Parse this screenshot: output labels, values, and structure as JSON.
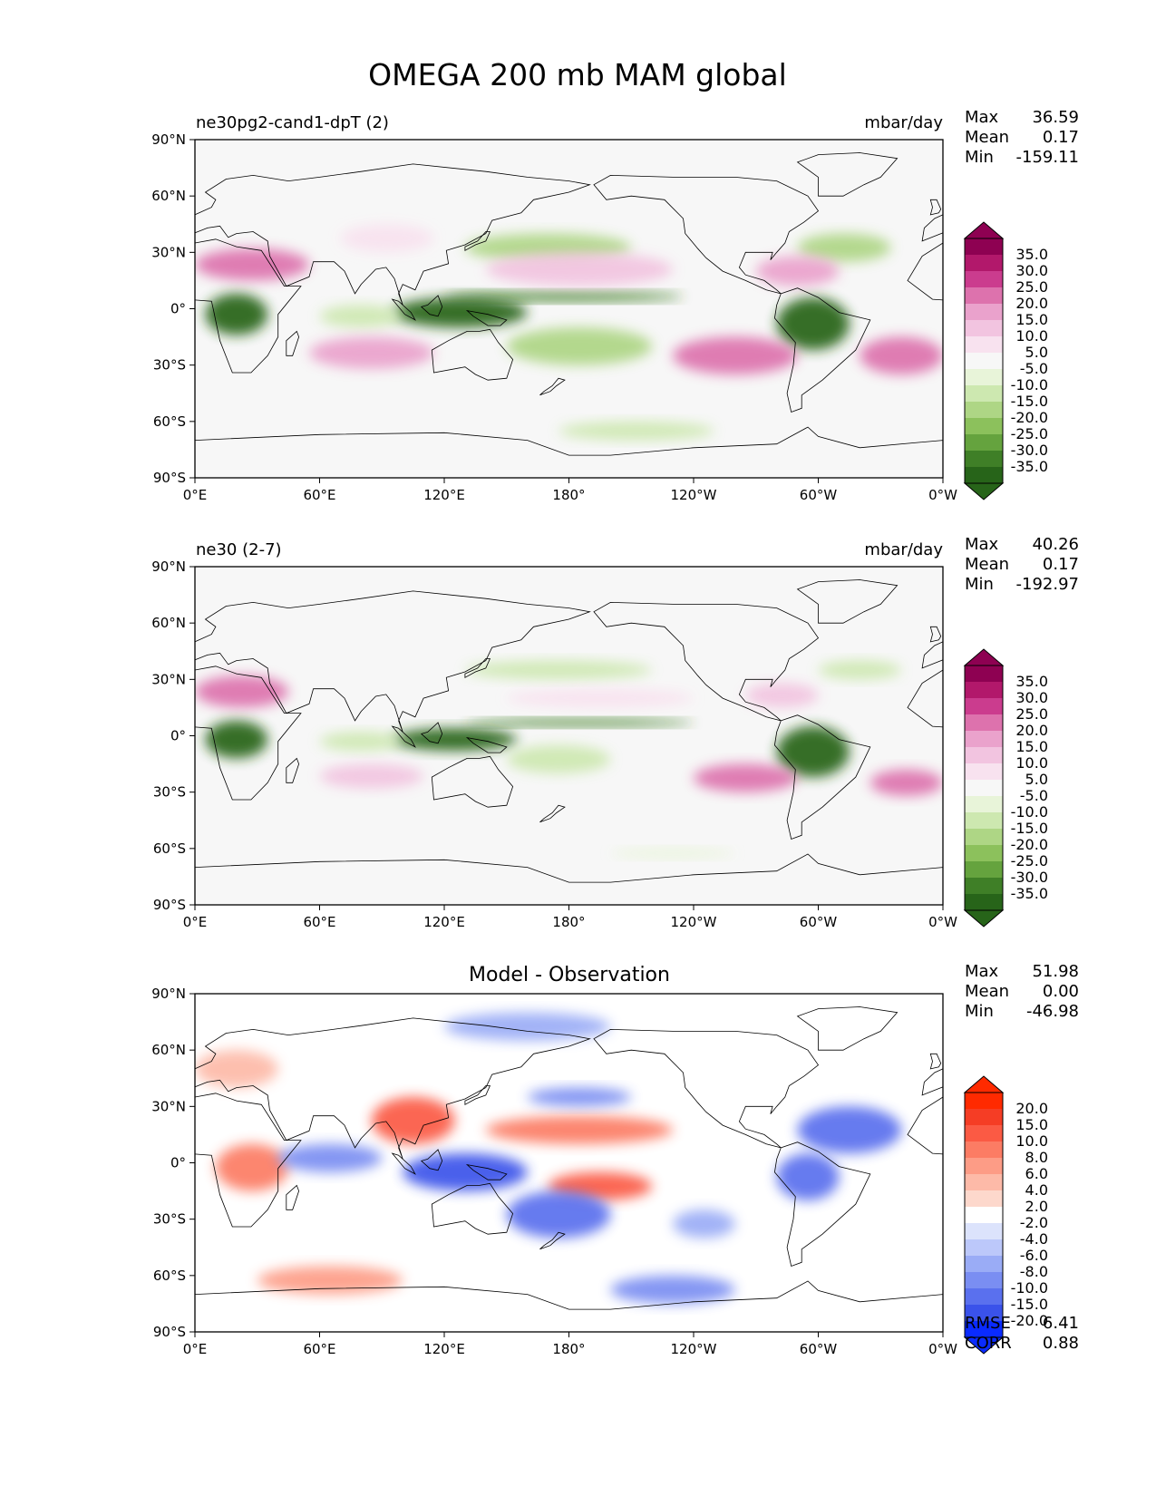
{
  "figure": {
    "title": "OMEGA 200 mb MAM global"
  },
  "chart_data": [
    {
      "type": "heatmap",
      "panel": "test",
      "left_title": "ne30pg2-cand1-dpT (2)",
      "units": "mbar/day",
      "stats": {
        "max_label": "Max",
        "max": "36.59",
        "mean_label": "Mean",
        "mean": "0.17",
        "min_label": "Min",
        "min": "-159.11"
      },
      "lat_ticks": [
        "90°N",
        "60°N",
        "30°N",
        "0°",
        "30°S",
        "60°S",
        "90°S"
      ],
      "lon_ticks": [
        "0°E",
        "60°E",
        "120°E",
        "180°",
        "120°W",
        "60°W",
        "0°W"
      ],
      "xlim": [
        0,
        360
      ],
      "ylim": [
        -90,
        90
      ],
      "colorbar": {
        "levels": [
          "35.0",
          "30.0",
          "25.0",
          "20.0",
          "15.0",
          "10.0",
          "5.0",
          "-5.0",
          "-10.0",
          "-15.0",
          "-20.0",
          "-25.0",
          "-30.0",
          "-35.0"
        ],
        "colors": [
          "#8e0152",
          "#b2186b",
          "#cb3c8e",
          "#dd72ad",
          "#eaa2cc",
          "#f2c4e0",
          "#f8e2ef",
          "#f7f7f7",
          "#e8f4d9",
          "#cde8b0",
          "#aed685",
          "#8cc15c",
          "#65a33e",
          "#3f7f27",
          "#276419"
        ]
      },
      "fields": [
        {
          "name": "itcz-pacific",
          "lon": [
            120,
            235
          ],
          "lat": [
            4,
            9
          ],
          "value": -30
        },
        {
          "name": "maritime-continent",
          "lon": [
            95,
            160
          ],
          "lat": [
            -10,
            6
          ],
          "value": -35
        },
        {
          "name": "central-africa",
          "lon": [
            5,
            35
          ],
          "lat": [
            -14,
            8
          ],
          "value": -35
        },
        {
          "name": "amazon",
          "lon": [
            280,
            315
          ],
          "lat": [
            -22,
            6
          ],
          "value": -35
        },
        {
          "name": "spcz",
          "lon": [
            150,
            220
          ],
          "lat": [
            -30,
            -10
          ],
          "value": -15
        },
        {
          "name": "north-pacific-storm",
          "lon": [
            130,
            210
          ],
          "lat": [
            25,
            40
          ],
          "value": -15
        },
        {
          "name": "north-atlantic-storm",
          "lon": [
            290,
            335
          ],
          "lat": [
            25,
            40
          ],
          "value": -15
        },
        {
          "name": "indian-ocean",
          "lon": [
            60,
            100
          ],
          "lat": [
            -10,
            2
          ],
          "value": -10
        },
        {
          "name": "southern-ocean-band",
          "lon": [
            175,
            250
          ],
          "lat": [
            -70,
            -60
          ],
          "value": -10
        },
        {
          "name": "sahara-arabia",
          "lon": [
            0,
            55
          ],
          "lat": [
            15,
            32
          ],
          "value": 25
        },
        {
          "name": "subtropical-n-pacific",
          "lon": [
            140,
            230
          ],
          "lat": [
            12,
            30
          ],
          "value": 15
        },
        {
          "name": "se-pacific",
          "lon": [
            230,
            290
          ],
          "lat": [
            -35,
            -15
          ],
          "value": 25
        },
        {
          "name": "caribbean",
          "lon": [
            270,
            310
          ],
          "lat": [
            12,
            28
          ],
          "value": 20
        },
        {
          "name": "south-atlantic",
          "lon": [
            320,
            360
          ],
          "lat": [
            -35,
            -15
          ],
          "value": 25
        },
        {
          "name": "south-indian",
          "lon": [
            55,
            115
          ],
          "lat": [
            -32,
            -15
          ],
          "value": 20
        },
        {
          "name": "tibet",
          "lon": [
            70,
            115
          ],
          "lat": [
            30,
            45
          ],
          "value": 10
        }
      ]
    },
    {
      "type": "heatmap",
      "panel": "reference",
      "left_title": "ne30 (2-7)",
      "units": "mbar/day",
      "stats": {
        "max_label": "Max",
        "max": "40.26",
        "mean_label": "Mean",
        "mean": "0.17",
        "min_label": "Min",
        "min": "-192.97"
      },
      "lat_ticks": [
        "90°N",
        "60°N",
        "30°N",
        "0°",
        "30°S",
        "60°S",
        "90°S"
      ],
      "lon_ticks": [
        "0°E",
        "60°E",
        "120°E",
        "180°",
        "120°W",
        "60°W",
        "0°W"
      ],
      "xlim": [
        0,
        360
      ],
      "ylim": [
        -90,
        90
      ],
      "colorbar": {
        "levels": [
          "35.0",
          "30.0",
          "25.0",
          "20.0",
          "15.0",
          "10.0",
          "5.0",
          "-5.0",
          "-10.0",
          "-15.0",
          "-20.0",
          "-25.0",
          "-30.0",
          "-35.0"
        ],
        "colors": [
          "#8e0152",
          "#b2186b",
          "#cb3c8e",
          "#dd72ad",
          "#eaa2cc",
          "#f2c4e0",
          "#f8e2ef",
          "#f7f7f7",
          "#e8f4d9",
          "#cde8b0",
          "#aed685",
          "#8cc15c",
          "#65a33e",
          "#3f7f27",
          "#276419"
        ]
      },
      "fields": [
        {
          "name": "itcz-pacific",
          "lon": [
            130,
            240
          ],
          "lat": [
            5,
            9
          ],
          "value": -30
        },
        {
          "name": "maritime-continent",
          "lon": [
            95,
            155
          ],
          "lat": [
            -8,
            4
          ],
          "value": -35
        },
        {
          "name": "central-africa",
          "lon": [
            5,
            35
          ],
          "lat": [
            -12,
            8
          ],
          "value": -35
        },
        {
          "name": "amazon",
          "lon": [
            280,
            315
          ],
          "lat": [
            -22,
            5
          ],
          "value": -35
        },
        {
          "name": "spcz",
          "lon": [
            150,
            200
          ],
          "lat": [
            -20,
            -5
          ],
          "value": -10
        },
        {
          "name": "north-pacific-storm",
          "lon": [
            130,
            220
          ],
          "lat": [
            30,
            40
          ],
          "value": -10
        },
        {
          "name": "north-atlantic-storm",
          "lon": [
            300,
            340
          ],
          "lat": [
            30,
            40
          ],
          "value": -10
        },
        {
          "name": "indian-ocean",
          "lon": [
            60,
            100
          ],
          "lat": [
            -8,
            2
          ],
          "value": -10
        },
        {
          "name": "southern-ocean-band",
          "lon": [
            200,
            260
          ],
          "lat": [
            -65,
            -60
          ],
          "value": -5
        },
        {
          "name": "sahara-arabia",
          "lon": [
            0,
            45
          ],
          "lat": [
            15,
            32
          ],
          "value": 25
        },
        {
          "name": "subtropical-n-pacific",
          "lon": [
            150,
            240
          ],
          "lat": [
            15,
            25
          ],
          "value": 10
        },
        {
          "name": "se-pacific",
          "lon": [
            240,
            290
          ],
          "lat": [
            -30,
            -15
          ],
          "value": 25
        },
        {
          "name": "caribbean",
          "lon": [
            265,
            300
          ],
          "lat": [
            15,
            28
          ],
          "value": 15
        },
        {
          "name": "south-atlantic",
          "lon": [
            325,
            360
          ],
          "lat": [
            -32,
            -18
          ],
          "value": 25
        },
        {
          "name": "south-indian",
          "lon": [
            60,
            110
          ],
          "lat": [
            -28,
            -15
          ],
          "value": 15
        }
      ]
    },
    {
      "type": "heatmap",
      "panel": "difference",
      "center_title": "Model - Observation",
      "stats": {
        "max_label": "Max",
        "max": "51.98",
        "mean_label": "Mean",
        "mean": "0.00",
        "min_label": "Min",
        "min": "-46.98"
      },
      "metrics": {
        "rmse_label": "RMSE",
        "rmse": "6.41",
        "corr_label": "CORR",
        "corr": "0.88"
      },
      "lat_ticks": [
        "90°N",
        "60°N",
        "30°N",
        "0°",
        "30°S",
        "60°S",
        "90°S"
      ],
      "lon_ticks": [
        "0°E",
        "60°E",
        "120°E",
        "180°",
        "120°W",
        "60°W",
        "0°W"
      ],
      "xlim": [
        0,
        360
      ],
      "ylim": [
        -90,
        90
      ],
      "colorbar": {
        "levels": [
          "20.0",
          "15.0",
          "10.0",
          "8.0",
          "6.0",
          "4.0",
          "2.0",
          "-2.0",
          "-4.0",
          "-6.0",
          "-8.0",
          "-10.0",
          "-15.0",
          "-20.0"
        ],
        "colors": [
          "#ff2a00",
          "#f53d25",
          "#fb5a44",
          "#fc7c64",
          "#fd9c86",
          "#fdbaa8",
          "#fdd8cc",
          "#ffffff",
          "#dce3fc",
          "#bcc8fa",
          "#9aacf6",
          "#7a8ef2",
          "#5a70ee",
          "#3a52ea",
          "#0a2bff"
        ]
      },
      "fields": [
        {
          "name": "maritime-pos",
          "lon": [
            85,
            125
          ],
          "lat": [
            10,
            35
          ],
          "value": 15
        },
        {
          "name": "ind-ocean-neg",
          "lon": [
            100,
            160
          ],
          "lat": [
            -15,
            5
          ],
          "value": -15
        },
        {
          "name": "central-pac-pos",
          "lon": [
            170,
            220
          ],
          "lat": [
            -20,
            -5
          ],
          "value": 15
        },
        {
          "name": "sw-pac-neg",
          "lon": [
            150,
            200
          ],
          "lat": [
            -40,
            -15
          ],
          "value": -10
        },
        {
          "name": "africa-pos",
          "lon": [
            10,
            45
          ],
          "lat": [
            -15,
            10
          ],
          "value": 10
        },
        {
          "name": "atlantic-neg",
          "lon": [
            290,
            340
          ],
          "lat": [
            5,
            30
          ],
          "value": -10
        },
        {
          "name": "n-pac-pos",
          "lon": [
            140,
            230
          ],
          "lat": [
            10,
            25
          ],
          "value": 10
        },
        {
          "name": "n-pac-neg",
          "lon": [
            160,
            210
          ],
          "lat": [
            30,
            40
          ],
          "value": -8
        },
        {
          "name": "arctic-neg",
          "lon": [
            120,
            200
          ],
          "lat": [
            65,
            80
          ],
          "value": -6
        },
        {
          "name": "southern-pos",
          "lon": [
            30,
            100
          ],
          "lat": [
            -70,
            -55
          ],
          "value": 8
        },
        {
          "name": "southern-neg",
          "lon": [
            200,
            260
          ],
          "lat": [
            -75,
            -60
          ],
          "value": -8
        },
        {
          "name": "amazon-mixed",
          "lon": [
            280,
            310
          ],
          "lat": [
            -20,
            5
          ],
          "value": -10
        },
        {
          "name": "s-atl-neg",
          "lon": [
            230,
            260
          ],
          "lat": [
            -40,
            -25
          ],
          "value": -6
        },
        {
          "name": "indian-neg",
          "lon": [
            40,
            90
          ],
          "lat": [
            -5,
            10
          ],
          "value": -8
        },
        {
          "name": "europe-pos",
          "lon": [
            0,
            40
          ],
          "lat": [
            40,
            60
          ],
          "value": 6
        }
      ]
    }
  ]
}
